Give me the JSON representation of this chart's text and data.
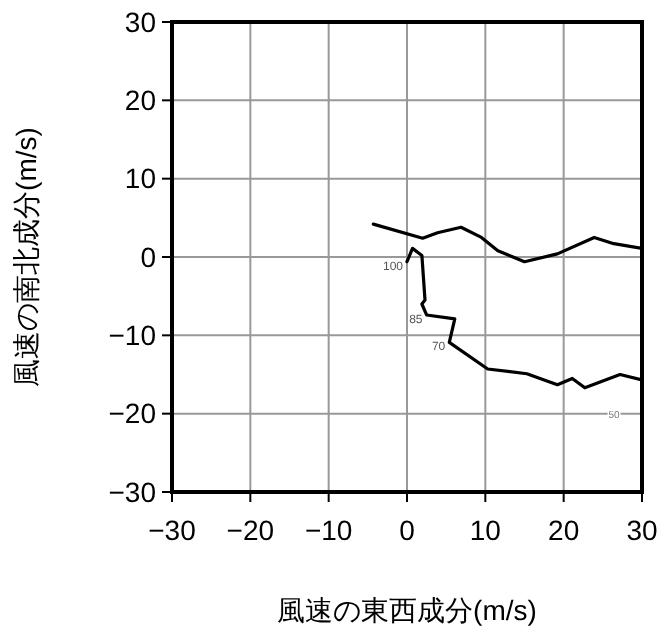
{
  "chart_data": {
    "type": "line",
    "xlabel": "風速の東西成分(m/s)",
    "ylabel": "風速の南北成分(m/s)",
    "xlim": [
      -30,
      30
    ],
    "ylim": [
      -30,
      30
    ],
    "xticks": [
      -30,
      -20,
      -10,
      0,
      10,
      20,
      30
    ],
    "yticks": [
      -30,
      -20,
      -10,
      0,
      10,
      20,
      30
    ],
    "grid": true,
    "series": [
      {
        "color": "#000000",
        "x": [
          0,
          0.7,
          1.9,
          2.3,
          1.9,
          2.5,
          6.1,
          5.4,
          10.3,
          15.3,
          19.2,
          21.1,
          22.7,
          27.2,
          30
        ],
        "values": [
          -0.6,
          1.1,
          0.2,
          -5.5,
          -6,
          -7.4,
          -7.9,
          -10.9,
          -14.3,
          -14.9,
          -16.3,
          -15.5,
          -16.7,
          -15,
          -15.7
        ]
      },
      {
        "color": "#000000",
        "x": [
          -4.3,
          2,
          3.9,
          6.9,
          9.5,
          11.6,
          15,
          19.2,
          23.9,
          26.4,
          30
        ],
        "values": [
          4.2,
          2.4,
          3.1,
          3.8,
          2.5,
          0.8,
          -0.6,
          0.4,
          2.5,
          1.7,
          1.1
        ]
      }
    ],
    "annotations": [
      {
        "text": "100",
        "x": 0,
        "y": -0.6
      },
      {
        "text": "85",
        "x": 2.5,
        "y": -7.4
      },
      {
        "text": "70",
        "x": 5.4,
        "y": -10.9
      },
      "50"
    ]
  }
}
